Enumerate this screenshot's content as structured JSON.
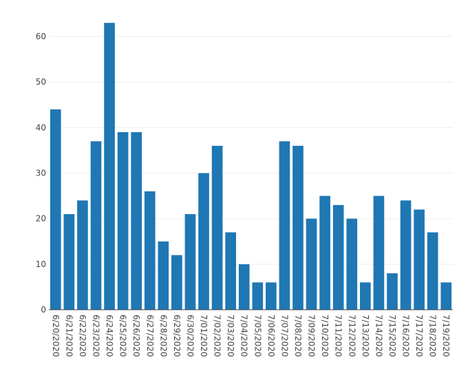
{
  "chart_data": {
    "type": "bar",
    "title": "",
    "xlabel": "",
    "ylabel": "",
    "ylim": [
      0,
      65
    ],
    "yticks": [
      0,
      10,
      20,
      30,
      40,
      50,
      60
    ],
    "grid": true,
    "bar_color": "#1f77b4",
    "categories": [
      "6/20/2020",
      "6/21/2020",
      "6/22/2020",
      "6/23/2020",
      "6/24/2020",
      "6/25/2020",
      "6/26/2020",
      "6/27/2020",
      "6/28/2020",
      "6/29/2020",
      "6/30/2020",
      "7/01/2020",
      "7/02/2020",
      "7/03/2020",
      "7/04/2020",
      "7/05/2020",
      "7/06/2020",
      "7/07/2020",
      "7/08/2020",
      "7/09/2020",
      "7/10/2020",
      "7/11/2020",
      "7/12/2020",
      "7/13/2020",
      "7/14/2020",
      "7/15/2020",
      "7/16/2020",
      "7/17/2020",
      "7/18/2020",
      "7/19/2020"
    ],
    "values": [
      44,
      21,
      24,
      37,
      63,
      39,
      39,
      26,
      15,
      12,
      21,
      30,
      36,
      17,
      10,
      6,
      6,
      37,
      36,
      20,
      25,
      23,
      20,
      6,
      25,
      8,
      24,
      22,
      17,
      6
    ]
  }
}
